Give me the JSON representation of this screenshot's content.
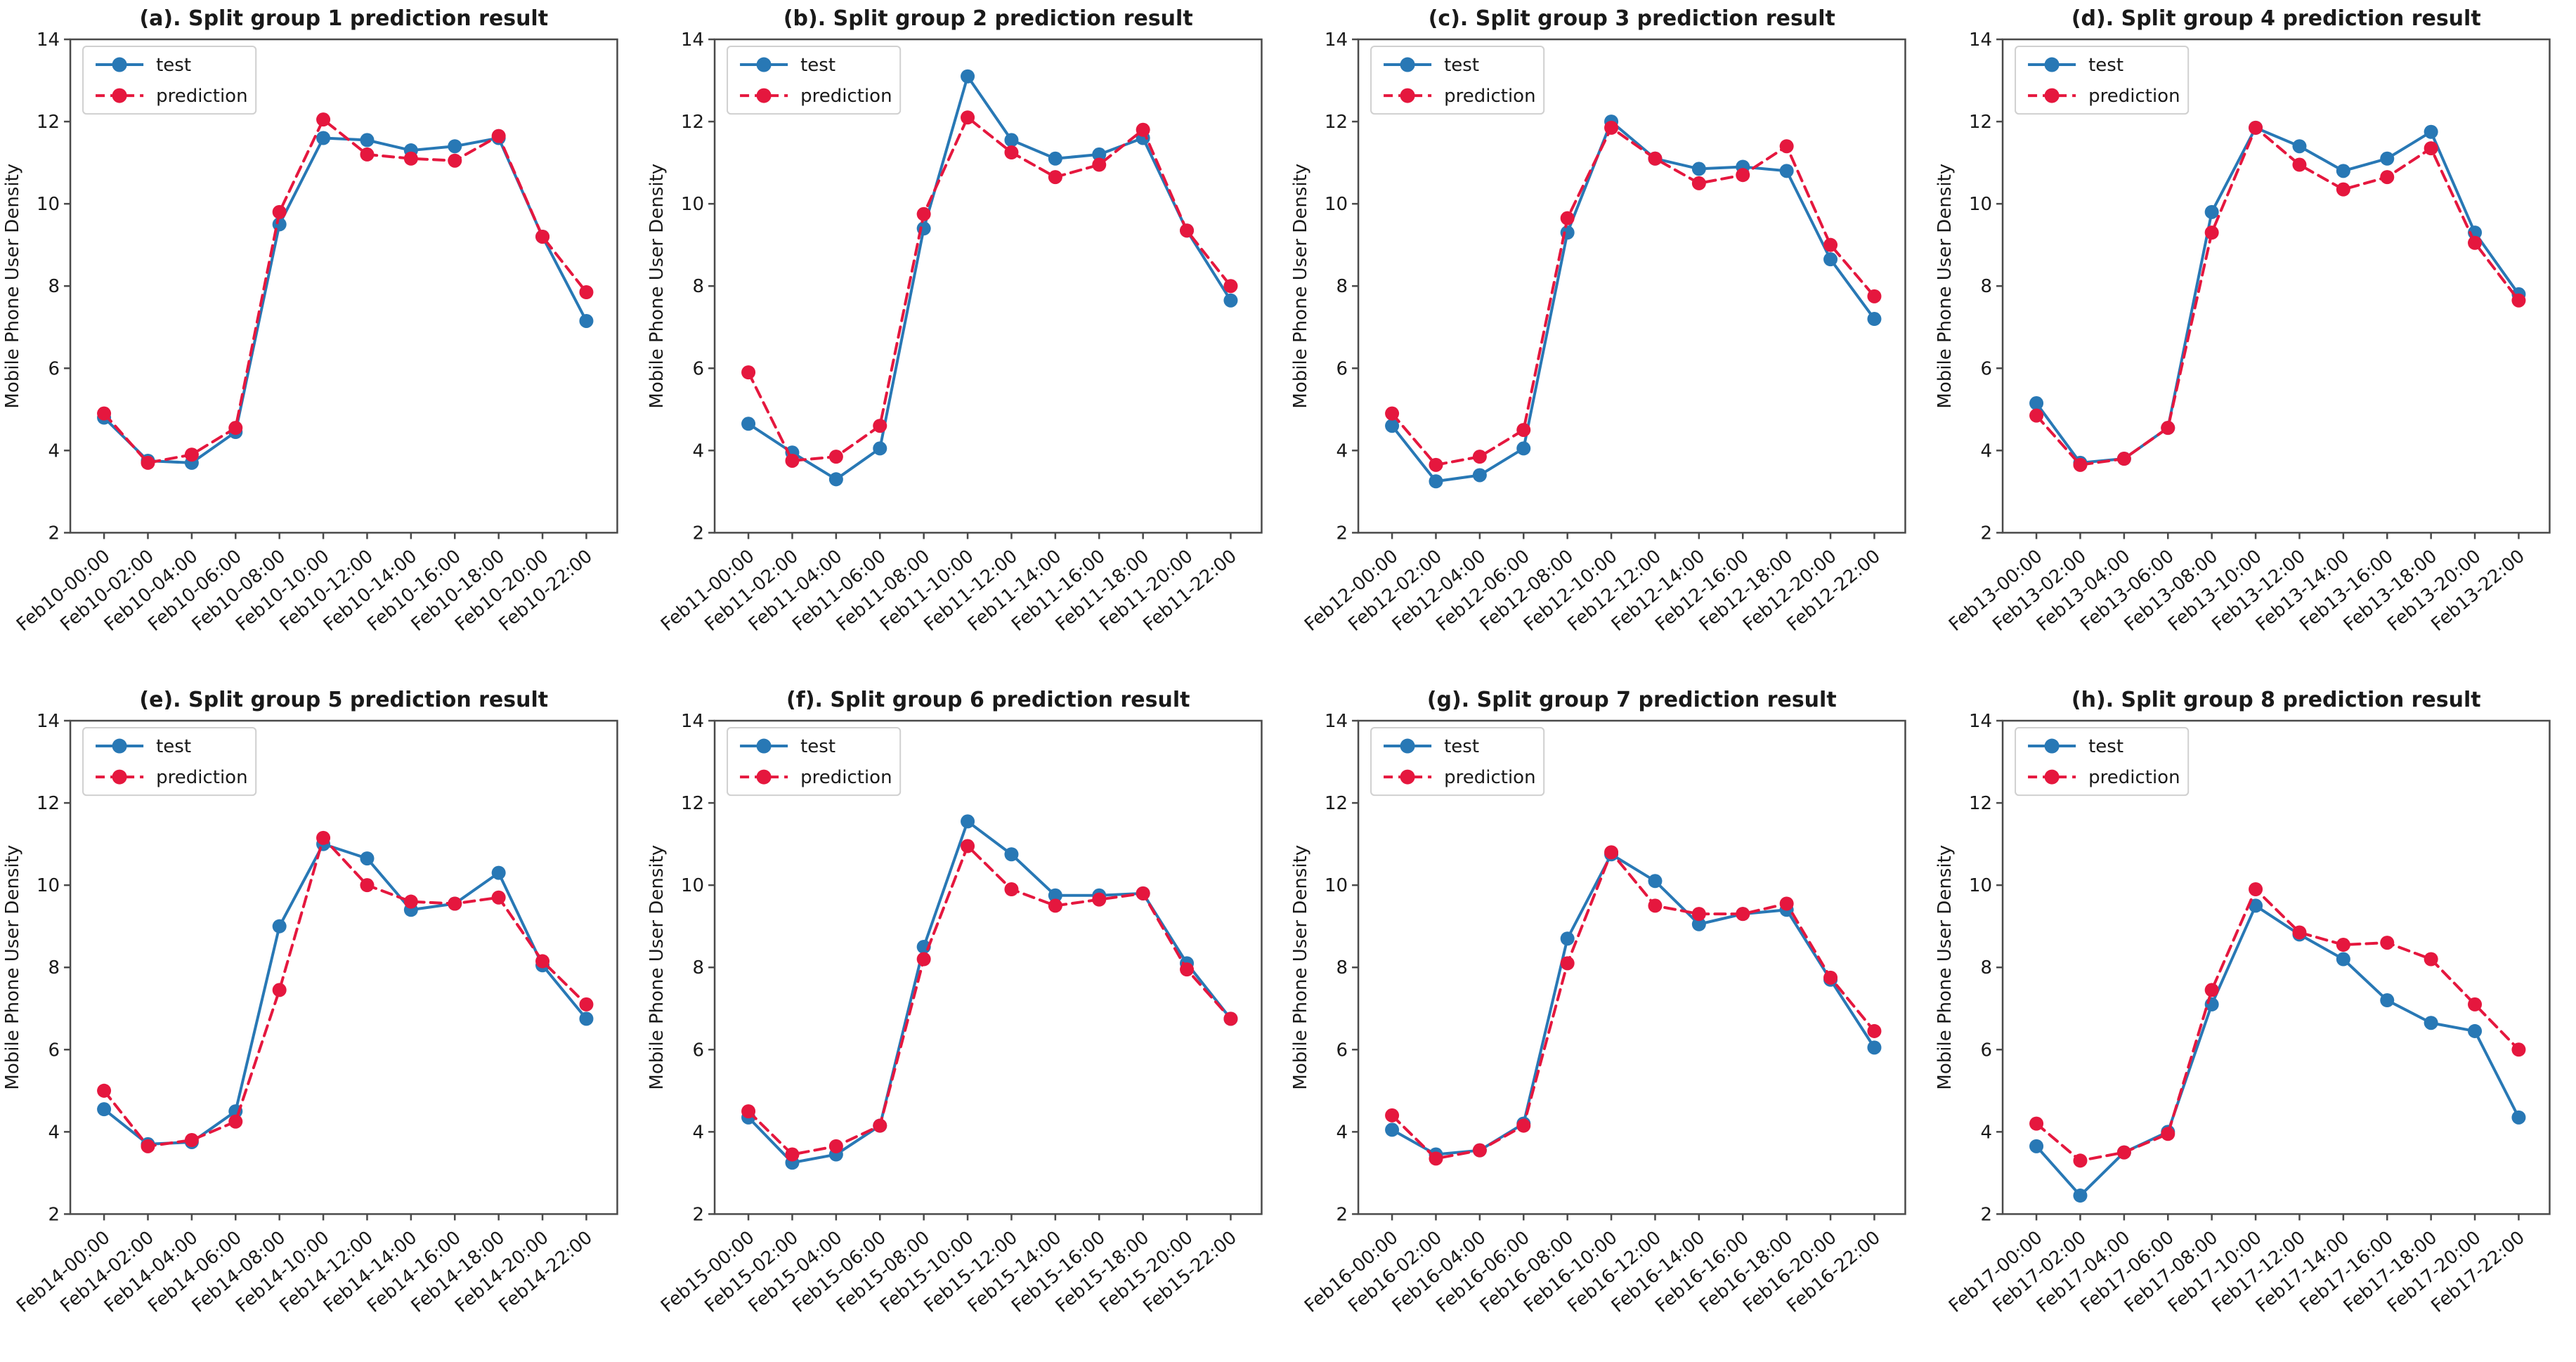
{
  "figure": {
    "background": "#ffffff",
    "ylabel": "Mobile Phone User Density",
    "legend_labels": [
      "test",
      "prediction"
    ]
  },
  "chart_style": {
    "test_color": "#2878b5",
    "prediction_color": "#e5173e",
    "axis_color": "#4a4a4a",
    "text_color": "#1a1a1a",
    "legend_border_color": "#d0d0d0"
  },
  "chart_data": [
    {
      "type": "line",
      "panel": "a",
      "title": "(a). Split group 1 prediction result",
      "ylabel": "Mobile Phone User Density",
      "ylim": [
        2,
        14
      ],
      "yticks": [
        2,
        4,
        6,
        8,
        10,
        12,
        14
      ],
      "grid": false,
      "legend_position": "upper-left",
      "categories": [
        "Feb10-00:00",
        "Feb10-02:00",
        "Feb10-04:00",
        "Feb10-06:00",
        "Feb10-08:00",
        "Feb10-10:00",
        "Feb10-12:00",
        "Feb10-14:00",
        "Feb10-16:00",
        "Feb10-18:00",
        "Feb10-20:00",
        "Feb10-22:00"
      ],
      "series": [
        {
          "name": "test",
          "style": "solid",
          "values": [
            4.8,
            3.75,
            3.7,
            4.45,
            9.5,
            11.6,
            11.55,
            11.3,
            11.4,
            11.6,
            9.2,
            7.15
          ]
        },
        {
          "name": "prediction",
          "style": "dashed",
          "values": [
            4.9,
            3.7,
            3.9,
            4.55,
            9.8,
            12.05,
            11.2,
            11.1,
            11.05,
            11.65,
            9.2,
            7.85
          ]
        }
      ]
    },
    {
      "type": "line",
      "panel": "b",
      "title": "(b). Split group 2 prediction result",
      "ylabel": "Mobile Phone User Density",
      "ylim": [
        2,
        14
      ],
      "yticks": [
        2,
        4,
        6,
        8,
        10,
        12,
        14
      ],
      "grid": false,
      "legend_position": "upper-left",
      "categories": [
        "Feb11-00:00",
        "Feb11-02:00",
        "Feb11-04:00",
        "Feb11-06:00",
        "Feb11-08:00",
        "Feb11-10:00",
        "Feb11-12:00",
        "Feb11-14:00",
        "Feb11-16:00",
        "Feb11-18:00",
        "Feb11-20:00",
        "Feb11-22:00"
      ],
      "series": [
        {
          "name": "test",
          "style": "solid",
          "values": [
            4.65,
            3.95,
            3.3,
            4.05,
            9.4,
            13.1,
            11.55,
            11.1,
            11.2,
            11.6,
            9.35,
            7.65
          ]
        },
        {
          "name": "prediction",
          "style": "dashed",
          "values": [
            5.9,
            3.75,
            3.85,
            4.6,
            9.75,
            12.1,
            11.25,
            10.65,
            10.95,
            11.8,
            9.35,
            8.0
          ]
        }
      ]
    },
    {
      "type": "line",
      "panel": "c",
      "title": "(c). Split group 3 prediction result",
      "ylabel": "Mobile Phone User Density",
      "ylim": [
        2,
        14
      ],
      "yticks": [
        2,
        4,
        6,
        8,
        10,
        12,
        14
      ],
      "grid": false,
      "legend_position": "upper-left",
      "categories": [
        "Feb12-00:00",
        "Feb12-02:00",
        "Feb12-04:00",
        "Feb12-06:00",
        "Feb12-08:00",
        "Feb12-10:00",
        "Feb12-12:00",
        "Feb12-14:00",
        "Feb12-16:00",
        "Feb12-18:00",
        "Feb12-20:00",
        "Feb12-22:00"
      ],
      "series": [
        {
          "name": "test",
          "style": "solid",
          "values": [
            4.6,
            3.25,
            3.4,
            4.05,
            9.3,
            12.0,
            11.1,
            10.85,
            10.9,
            10.8,
            8.65,
            7.2
          ]
        },
        {
          "name": "prediction",
          "style": "dashed",
          "values": [
            4.9,
            3.65,
            3.85,
            4.5,
            9.65,
            11.85,
            11.1,
            10.5,
            10.7,
            11.4,
            9.0,
            7.75
          ]
        }
      ]
    },
    {
      "type": "line",
      "panel": "d",
      "title": "(d). Split group 4 prediction result",
      "ylabel": "Mobile Phone User Density",
      "ylim": [
        2,
        14
      ],
      "yticks": [
        2,
        4,
        6,
        8,
        10,
        12,
        14
      ],
      "grid": false,
      "legend_position": "upper-left",
      "categories": [
        "Feb13-00:00",
        "Feb13-02:00",
        "Feb13-04:00",
        "Feb13-06:00",
        "Feb13-08:00",
        "Feb13-10:00",
        "Feb13-12:00",
        "Feb13-14:00",
        "Feb13-16:00",
        "Feb13-18:00",
        "Feb13-20:00",
        "Feb13-22:00"
      ],
      "series": [
        {
          "name": "test",
          "style": "solid",
          "values": [
            5.15,
            3.7,
            3.8,
            4.55,
            9.8,
            11.85,
            11.4,
            10.8,
            11.1,
            11.75,
            9.3,
            7.8
          ]
        },
        {
          "name": "prediction",
          "style": "dashed",
          "values": [
            4.85,
            3.65,
            3.8,
            4.55,
            9.3,
            11.85,
            10.95,
            10.35,
            10.65,
            11.35,
            9.05,
            7.65
          ]
        }
      ]
    },
    {
      "type": "line",
      "panel": "e",
      "title": "(e). Split group 5 prediction result",
      "ylabel": "Mobile Phone User Density",
      "ylim": [
        2,
        14
      ],
      "yticks": [
        2,
        4,
        6,
        8,
        10,
        12,
        14
      ],
      "grid": false,
      "legend_position": "upper-left",
      "categories": [
        "Feb14-00:00",
        "Feb14-02:00",
        "Feb14-04:00",
        "Feb14-06:00",
        "Feb14-08:00",
        "Feb14-10:00",
        "Feb14-12:00",
        "Feb14-14:00",
        "Feb14-16:00",
        "Feb14-18:00",
        "Feb14-20:00",
        "Feb14-22:00"
      ],
      "series": [
        {
          "name": "test",
          "style": "solid",
          "values": [
            4.55,
            3.7,
            3.75,
            4.5,
            9.0,
            11.0,
            10.65,
            9.4,
            9.55,
            10.3,
            8.05,
            6.75
          ]
        },
        {
          "name": "prediction",
          "style": "dashed",
          "values": [
            5.0,
            3.65,
            3.8,
            4.25,
            7.45,
            11.15,
            10.0,
            9.6,
            9.55,
            9.7,
            8.15,
            7.1
          ]
        }
      ]
    },
    {
      "type": "line",
      "panel": "f",
      "title": "(f). Split group 6 prediction result",
      "ylabel": "Mobile Phone User Density",
      "ylim": [
        2,
        14
      ],
      "yticks": [
        2,
        4,
        6,
        8,
        10,
        12,
        14
      ],
      "grid": false,
      "legend_position": "upper-left",
      "categories": [
        "Feb15-00:00",
        "Feb15-02:00",
        "Feb15-04:00",
        "Feb15-06:00",
        "Feb15-08:00",
        "Feb15-10:00",
        "Feb15-12:00",
        "Feb15-14:00",
        "Feb15-16:00",
        "Feb15-18:00",
        "Feb15-20:00",
        "Feb15-22:00"
      ],
      "series": [
        {
          "name": "test",
          "style": "solid",
          "values": [
            4.35,
            3.25,
            3.45,
            4.15,
            8.5,
            11.55,
            10.75,
            9.75,
            9.75,
            9.8,
            8.1,
            6.75
          ]
        },
        {
          "name": "prediction",
          "style": "dashed",
          "values": [
            4.5,
            3.45,
            3.65,
            4.15,
            8.2,
            10.95,
            9.9,
            9.5,
            9.65,
            9.8,
            7.95,
            6.75
          ]
        }
      ]
    },
    {
      "type": "line",
      "panel": "g",
      "title": "(g). Split group 7 prediction result",
      "ylabel": "Mobile Phone User Density",
      "ylim": [
        2,
        14
      ],
      "yticks": [
        2,
        4,
        6,
        8,
        10,
        12,
        14
      ],
      "grid": false,
      "legend_position": "upper-left",
      "categories": [
        "Feb16-00:00",
        "Feb16-02:00",
        "Feb16-04:00",
        "Feb16-06:00",
        "Feb16-08:00",
        "Feb16-10:00",
        "Feb16-12:00",
        "Feb16-14:00",
        "Feb16-16:00",
        "Feb16-18:00",
        "Feb16-20:00",
        "Feb16-22:00"
      ],
      "series": [
        {
          "name": "test",
          "style": "solid",
          "values": [
            4.05,
            3.45,
            3.55,
            4.2,
            8.7,
            10.75,
            10.1,
            9.05,
            9.3,
            9.4,
            7.7,
            6.05
          ]
        },
        {
          "name": "prediction",
          "style": "dashed",
          "values": [
            4.4,
            3.35,
            3.55,
            4.15,
            8.1,
            10.8,
            9.5,
            9.3,
            9.3,
            9.55,
            7.75,
            6.45
          ]
        }
      ]
    },
    {
      "type": "line",
      "panel": "h",
      "title": "(h). Split group 8 prediction result",
      "ylabel": "Mobile Phone User Density",
      "ylim": [
        2,
        14
      ],
      "yticks": [
        2,
        4,
        6,
        8,
        10,
        12,
        14
      ],
      "grid": false,
      "legend_position": "upper-left",
      "categories": [
        "Feb17-00:00",
        "Feb17-02:00",
        "Feb17-04:00",
        "Feb17-06:00",
        "Feb17-08:00",
        "Feb17-10:00",
        "Feb17-12:00",
        "Feb17-14:00",
        "Feb17-16:00",
        "Feb17-18:00",
        "Feb17-20:00",
        "Feb17-22:00"
      ],
      "series": [
        {
          "name": "test",
          "style": "solid",
          "values": [
            3.65,
            2.45,
            3.5,
            4.0,
            7.1,
            9.5,
            8.8,
            8.2,
            7.2,
            6.65,
            6.45,
            4.35
          ]
        },
        {
          "name": "prediction",
          "style": "dashed",
          "values": [
            4.2,
            3.3,
            3.5,
            3.95,
            7.45,
            9.9,
            8.85,
            8.55,
            8.6,
            8.2,
            7.1,
            6.0
          ]
        }
      ]
    }
  ]
}
